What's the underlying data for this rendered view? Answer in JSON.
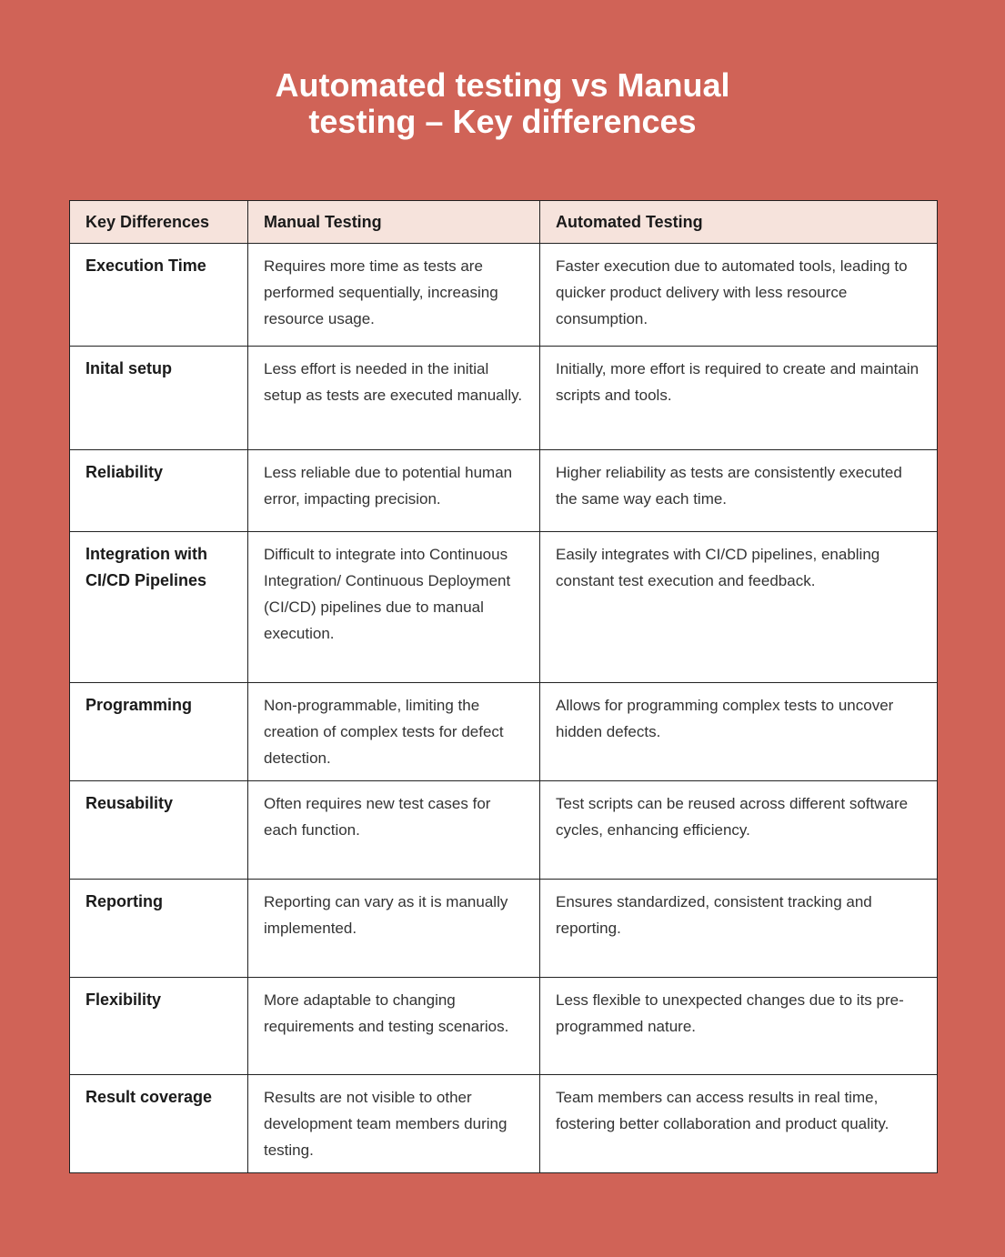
{
  "title_line1": "Automated testing vs Manual",
  "title_line2": "testing – Key differences",
  "colors": {
    "background": "#D06357",
    "header": "#F6E3DC"
  },
  "headers": [
    "Key Differences",
    "Manual Testing",
    "Automated Testing"
  ],
  "rows": [
    {
      "key": "Execution Time",
      "manual": "Requires more time as tests are performed sequentially, increasing resource usage.",
      "automated": "Faster execution due to automated tools, leading to quicker product delivery with less resource consumption."
    },
    {
      "key": "Inital setup",
      "manual": "Less effort is needed in the initial setup as tests are executed manually.",
      "automated": "Initially, more effort is required to create and maintain scripts and tools."
    },
    {
      "key": "Reliability",
      "manual": "Less reliable due to potential human error, impacting precision.",
      "automated": "Higher reliability as tests are consistently executed the same way each time."
    },
    {
      "key": "Integration with CI/CD Pipelines",
      "manual": "Difficult to integrate into Continuous Integration/ Continuous Deployment (CI/CD) pipelines due to manual execution.",
      "automated": "Easily integrates with CI/CD pipelines, enabling constant test execution and feedback."
    },
    {
      "key": "Programming",
      "manual": "Non-programmable, limiting the creation of complex tests for defect detection.",
      "automated": "Allows for programming complex tests to uncover hidden defects."
    },
    {
      "key": "Reusability",
      "manual": "Often requires new test cases for each function.",
      "automated": "Test scripts can be reused across different software cycles, enhancing efficiency."
    },
    {
      "key": "Reporting",
      "manual": "Reporting can vary as it is manually implemented.",
      "automated": "Ensures standardized, consistent tracking and reporting."
    },
    {
      "key": "Flexibility",
      "manual": "More adaptable to changing requirements and testing scenarios.",
      "automated": "Less flexible to unexpected changes due to its pre-programmed nature."
    },
    {
      "key": "Result coverage",
      "manual": "Results are not visible to other development team members during testing.",
      "automated": "Team members can access results in real time, fostering better collaboration and product quality."
    }
  ]
}
